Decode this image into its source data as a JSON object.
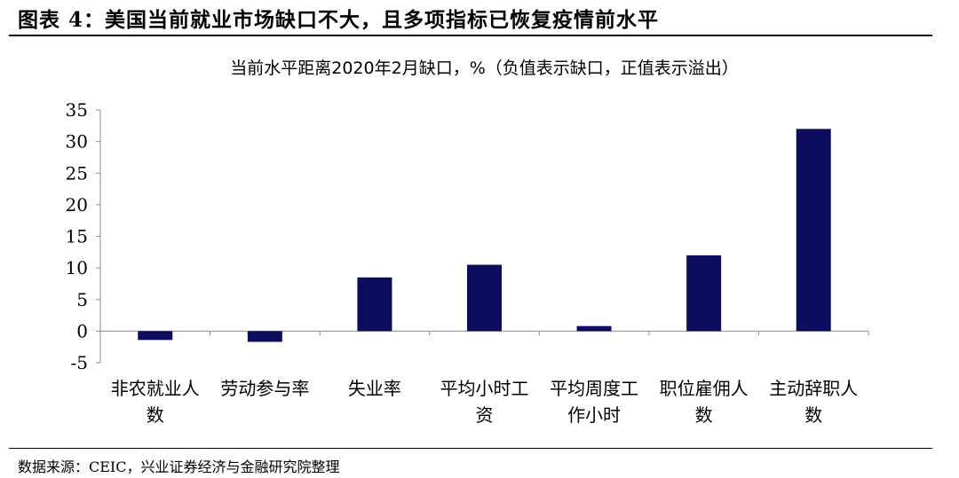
{
  "figure": {
    "title": "图表 4：美国当前就业市场缺口不大，且多项指标已恢复疫情前水平",
    "source": "数据来源：CEIC，兴业证券经济与金融研究院整理"
  },
  "colors": {
    "bar": "#0d0d5e",
    "axis": "#8c8c8c"
  },
  "chart_data": {
    "type": "bar",
    "title": "当前水平距离2020年2月缺口，%（负值表示缺口，正值表示溢出）",
    "categories": [
      [
        "非农就业人",
        "数"
      ],
      [
        "劳动参与率"
      ],
      [
        "失业率"
      ],
      [
        "平均小时工",
        "资"
      ],
      [
        "平均周度工",
        "作小时"
      ],
      [
        "职位雇佣人",
        "数"
      ],
      [
        "主动辞职人",
        "数"
      ]
    ],
    "values": [
      -1.4,
      -1.7,
      8.5,
      10.5,
      0.8,
      12.0,
      32.0
    ],
    "ylim": [
      -5,
      35
    ],
    "yticks": [
      -5,
      0,
      5,
      10,
      15,
      20,
      25,
      30,
      35
    ],
    "grid": false,
    "legend": "none"
  }
}
